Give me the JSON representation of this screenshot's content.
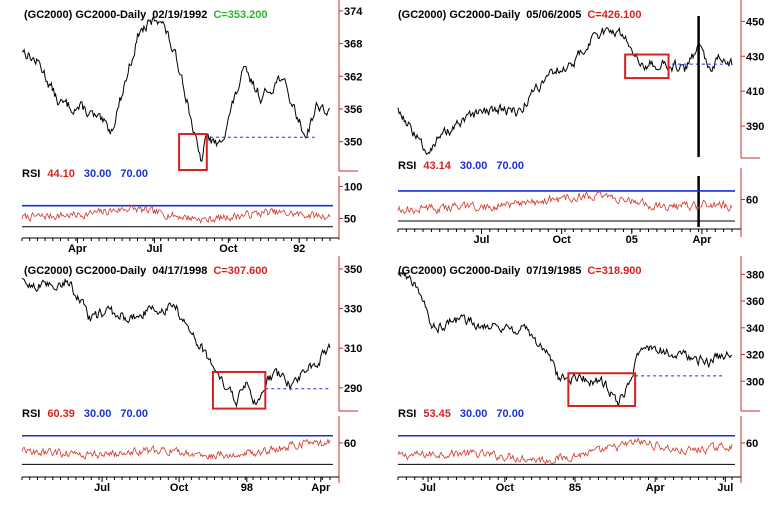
{
  "layout": {
    "cols": 2,
    "rows": 2
  },
  "colors": {
    "price": "#000000",
    "rsi": "#d03a2a",
    "overbought": "#cc44cc",
    "oversold": "#33aa33",
    "axis": "#c0302a",
    "band": "#1a2fd6",
    "box": "#d6221f",
    "support": "#1a2fd6",
    "marker": "#000000",
    "green": "#2bb52b",
    "blue": "#1a2fd6",
    "red": "#d6221f"
  },
  "chart_data": [
    {
      "type": "line",
      "header": {
        "symbol": "(GC2000) GC2000-Daily",
        "date": "02/19/1992",
        "close": "C=353.200",
        "close_color": "green"
      },
      "price": {
        "ylim": [
          344.8,
          374.9
        ],
        "ticks": [
          374,
          368,
          362,
          356,
          350
        ],
        "tick_labels": [
          "374",
          "368",
          "362",
          "356",
          "350"
        ],
        "anchors": [
          [
            0.0,
            367
          ],
          [
            0.06,
            364
          ],
          [
            0.12,
            357
          ],
          [
            0.2,
            356
          ],
          [
            0.29,
            352
          ],
          [
            0.38,
            370
          ],
          [
            0.45,
            373
          ],
          [
            0.52,
            362
          ],
          [
            0.58,
            346
          ],
          [
            0.6,
            351
          ],
          [
            0.64,
            349
          ],
          [
            0.72,
            363
          ],
          [
            0.78,
            358
          ],
          [
            0.84,
            362
          ],
          [
            0.92,
            351
          ],
          [
            0.96,
            357
          ],
          [
            1.0,
            355
          ]
        ]
      },
      "rsi": {
        "label": "RSI",
        "value": "44.10",
        "low": "30.00",
        "high": "70.00",
        "ylim": [
          32,
          110
        ],
        "bands": [
          70,
          37
        ],
        "ticks": [
          100,
          50
        ],
        "tick_labels": [
          "100",
          "50"
        ],
        "anchors": [
          [
            0.0,
            52
          ],
          [
            0.2,
            56
          ],
          [
            0.35,
            66
          ],
          [
            0.5,
            54
          ],
          [
            0.6,
            48
          ],
          [
            0.8,
            60
          ],
          [
            1.0,
            53
          ]
        ]
      },
      "x_ticks": [
        {
          "label": "Apr",
          "pos": 0.18
        },
        {
          "label": "Jul",
          "pos": 0.43
        },
        {
          "label": "Oct",
          "pos": 0.67
        },
        {
          "label": "92",
          "pos": 0.9
        }
      ],
      "annotations": {
        "box": {
          "x": [
            0.51,
            0.6
          ],
          "y": [
            344.8,
            351.4
          ]
        },
        "support": {
          "x": [
            0.61,
            0.96
          ],
          "y": 350.8
        }
      }
    },
    {
      "type": "line",
      "header": {
        "symbol": "(GC2000) GC2000-Daily",
        "date": "05/06/2005",
        "close": "C=426.100",
        "close_color": "red"
      },
      "price": {
        "ylim": [
          372.3,
          458.8
        ],
        "ticks": [
          450,
          430,
          410,
          390
        ],
        "tick_labels": [
          "450",
          "430",
          "410",
          "390"
        ],
        "anchors": [
          [
            0.0,
            400
          ],
          [
            0.04,
            388
          ],
          [
            0.08,
            376
          ],
          [
            0.15,
            387
          ],
          [
            0.22,
            395
          ],
          [
            0.3,
            400
          ],
          [
            0.36,
            398
          ],
          [
            0.45,
            420
          ],
          [
            0.52,
            425
          ],
          [
            0.58,
            440
          ],
          [
            0.64,
            446
          ],
          [
            0.67,
            442
          ],
          [
            0.74,
            425
          ],
          [
            0.8,
            426
          ],
          [
            0.86,
            422
          ],
          [
            0.9,
            435
          ],
          [
            0.93,
            422
          ],
          [
            0.96,
            428
          ],
          [
            1.0,
            425
          ]
        ]
      },
      "rsi": {
        "label": "RSI",
        "value": "43.14",
        "low": "30.00",
        "high": "70.00",
        "ylim": [
          28,
          92
        ],
        "bands": [
          70,
          35
        ],
        "ticks": [
          60
        ],
        "tick_labels": [
          "60"
        ],
        "anchors": [
          [
            0.0,
            48
          ],
          [
            0.3,
            52
          ],
          [
            0.55,
            64
          ],
          [
            0.65,
            62
          ],
          [
            0.8,
            50
          ],
          [
            0.95,
            55
          ],
          [
            1.0,
            50
          ]
        ]
      },
      "x_ticks": [
        {
          "label": "Jul",
          "pos": 0.25
        },
        {
          "label": "Oct",
          "pos": 0.49
        },
        {
          "label": "05",
          "pos": 0.7
        },
        {
          "label": "Apr",
          "pos": 0.91
        }
      ],
      "annotations": {
        "box": {
          "x": [
            0.68,
            0.81
          ],
          "y": [
            417.5,
            431
          ]
        },
        "support": {
          "x": [
            0.82,
            1.0
          ],
          "y": 425.5
        },
        "vline": 0.9
      }
    },
    {
      "type": "line",
      "header": {
        "symbol": "(GC2000) GC2000-Daily",
        "date": "04/17/1998",
        "close": "C=307.600",
        "close_color": "red"
      },
      "price": {
        "ylim": [
          278.8,
          353.5
        ],
        "ticks": [
          350,
          330,
          310,
          290
        ],
        "tick_labels": [
          "350",
          "330",
          "310",
          "290"
        ],
        "anchors": [
          [
            0.0,
            343
          ],
          [
            0.08,
            341
          ],
          [
            0.15,
            344
          ],
          [
            0.22,
            325
          ],
          [
            0.28,
            328
          ],
          [
            0.35,
            325
          ],
          [
            0.43,
            330
          ],
          [
            0.5,
            330
          ],
          [
            0.55,
            317
          ],
          [
            0.6,
            306
          ],
          [
            0.66,
            290
          ],
          [
            0.7,
            283
          ],
          [
            0.73,
            295
          ],
          [
            0.76,
            281
          ],
          [
            0.8,
            294
          ],
          [
            0.84,
            297
          ],
          [
            0.88,
            290
          ],
          [
            0.92,
            300
          ],
          [
            0.96,
            303
          ],
          [
            1.0,
            310
          ]
        ]
      },
      "rsi": {
        "label": "RSI",
        "value": "60.39",
        "low": "30.00",
        "high": "70.00",
        "ylim": [
          18,
          92
        ],
        "bands": [
          70,
          30
        ],
        "ticks": [
          60
        ],
        "tick_labels": [
          "60"
        ],
        "anchors": [
          [
            0.0,
            48
          ],
          [
            0.25,
            44
          ],
          [
            0.45,
            50
          ],
          [
            0.6,
            42
          ],
          [
            0.75,
            46
          ],
          [
            0.9,
            58
          ],
          [
            1.0,
            60
          ]
        ]
      },
      "x_ticks": [
        {
          "label": "Jul",
          "pos": 0.26
        },
        {
          "label": "Oct",
          "pos": 0.51
        },
        {
          "label": "98",
          "pos": 0.73
        },
        {
          "label": "Apr",
          "pos": 0.97
        }
      ],
      "annotations": {
        "box": {
          "x": [
            0.62,
            0.79
          ],
          "y": [
            279.5,
            298
          ]
        },
        "support": {
          "x": [
            0.79,
            1.0
          ],
          "y": 289.5
        }
      }
    },
    {
      "type": "line",
      "header": {
        "symbol": "(GC2000) GC2000-Daily",
        "date": "07/19/1985",
        "close": "C=318.900",
        "close_color": "red"
      },
      "price": {
        "ylim": [
          278.5,
          389.2
        ],
        "ticks": [
          380,
          360,
          340,
          320,
          300
        ],
        "tick_labels": [
          "380",
          "360",
          "340",
          "320",
          "300"
        ],
        "anchors": [
          [
            0.0,
            382
          ],
          [
            0.06,
            372
          ],
          [
            0.1,
            340
          ],
          [
            0.18,
            346
          ],
          [
            0.28,
            342
          ],
          [
            0.38,
            338
          ],
          [
            0.44,
            324
          ],
          [
            0.48,
            303
          ],
          [
            0.55,
            302
          ],
          [
            0.62,
            298
          ],
          [
            0.66,
            284
          ],
          [
            0.7,
            303
          ],
          [
            0.72,
            320
          ],
          [
            0.76,
            326
          ],
          [
            0.82,
            320
          ],
          [
            0.88,
            318
          ],
          [
            0.93,
            313
          ],
          [
            0.97,
            320
          ],
          [
            1.0,
            318
          ]
        ]
      },
      "rsi": {
        "label": "RSI",
        "value": "53.45",
        "low": "30.00",
        "high": "70.00",
        "ylim": [
          18,
          92
        ],
        "bands": [
          70,
          30
        ],
        "ticks": [
          60
        ],
        "tick_labels": [
          "60"
        ],
        "anchors": [
          [
            0.0,
            42
          ],
          [
            0.2,
            46
          ],
          [
            0.45,
            36
          ],
          [
            0.6,
            48
          ],
          [
            0.72,
            62
          ],
          [
            0.85,
            48
          ],
          [
            1.0,
            56
          ]
        ]
      },
      "x_ticks": [
        {
          "label": "Jul",
          "pos": 0.09
        },
        {
          "label": "Oct",
          "pos": 0.32
        },
        {
          "label": "85",
          "pos": 0.53
        },
        {
          "label": "Apr",
          "pos": 0.77
        },
        {
          "label": "Jul",
          "pos": 0.98
        }
      ],
      "annotations": {
        "box": {
          "x": [
            0.51,
            0.71
          ],
          "y": [
            281.5,
            306
          ]
        },
        "support": {
          "x": [
            0.71,
            0.97
          ],
          "y": 304
        }
      }
    }
  ]
}
